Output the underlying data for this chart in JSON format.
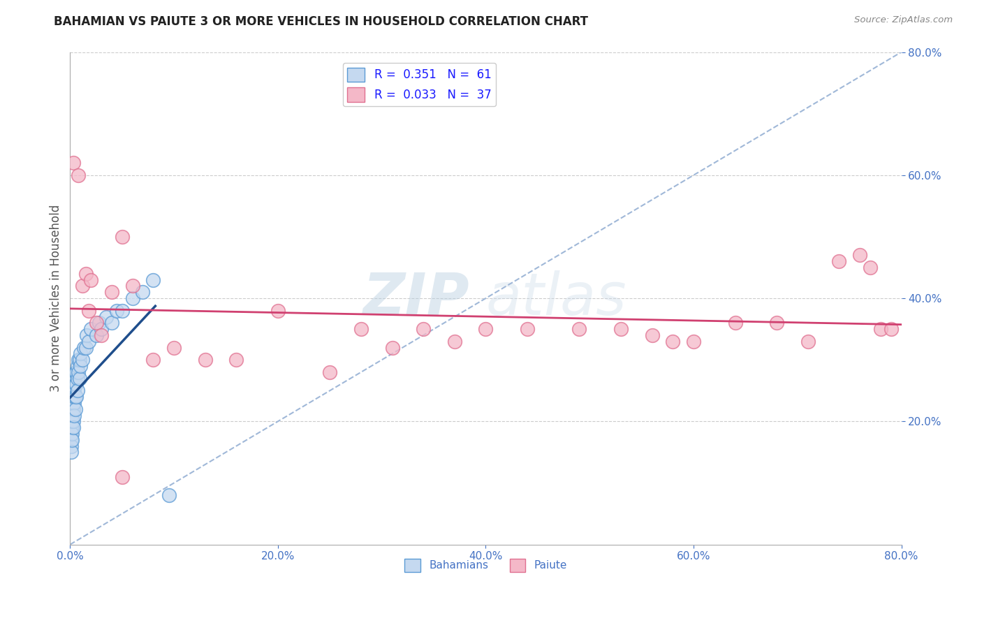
{
  "title": "BAHAMIAN VS PAIUTE 3 OR MORE VEHICLES IN HOUSEHOLD CORRELATION CHART",
  "source_text": "Source: ZipAtlas.com",
  "ylabel": "3 or more Vehicles in Household",
  "xlim": [
    0.0,
    0.8
  ],
  "ylim": [
    0.0,
    0.8
  ],
  "xtick_values": [
    0.0,
    0.2,
    0.4,
    0.6,
    0.8
  ],
  "ytick_values": [
    0.2,
    0.4,
    0.6,
    0.8
  ],
  "watermark_zip": "ZIP",
  "watermark_atlas": "atlas",
  "bahamian_R": 0.351,
  "bahamian_N": 61,
  "paiute_R": 0.033,
  "paiute_N": 37,
  "bahamian_fill_color": "#c5d9f0",
  "bahamian_edge_color": "#5b9bd5",
  "paiute_fill_color": "#f4b8c8",
  "paiute_edge_color": "#e07090",
  "blue_line_color": "#1f4e8c",
  "pink_line_color": "#d04070",
  "diag_line_color": "#a0b8d8",
  "grid_color": "#cccccc",
  "background_color": "#ffffff",
  "tick_label_color": "#4472c4",
  "right_ytick_color": "#4472c4",
  "legend_label_color": "#1a1aff",
  "bahamian_x": [
    0.001,
    0.001,
    0.001,
    0.001,
    0.001,
    0.001,
    0.001,
    0.001,
    0.001,
    0.002,
    0.002,
    0.002,
    0.002,
    0.002,
    0.002,
    0.002,
    0.002,
    0.003,
    0.003,
    0.003,
    0.003,
    0.003,
    0.003,
    0.004,
    0.004,
    0.004,
    0.004,
    0.004,
    0.005,
    0.005,
    0.005,
    0.005,
    0.006,
    0.006,
    0.006,
    0.007,
    0.007,
    0.007,
    0.008,
    0.008,
    0.009,
    0.009,
    0.01,
    0.01,
    0.012,
    0.013,
    0.015,
    0.016,
    0.018,
    0.02,
    0.025,
    0.028,
    0.03,
    0.035,
    0.04,
    0.045,
    0.05,
    0.06,
    0.07,
    0.08,
    0.095
  ],
  "bahamian_y": [
    0.18,
    0.2,
    0.22,
    0.17,
    0.19,
    0.21,
    0.16,
    0.23,
    0.15,
    0.21,
    0.19,
    0.23,
    0.18,
    0.25,
    0.2,
    0.22,
    0.17,
    0.22,
    0.24,
    0.2,
    0.26,
    0.19,
    0.23,
    0.23,
    0.25,
    0.21,
    0.27,
    0.24,
    0.24,
    0.26,
    0.22,
    0.28,
    0.26,
    0.28,
    0.24,
    0.27,
    0.29,
    0.25,
    0.28,
    0.3,
    0.3,
    0.27,
    0.29,
    0.31,
    0.3,
    0.32,
    0.32,
    0.34,
    0.33,
    0.35,
    0.34,
    0.36,
    0.35,
    0.37,
    0.36,
    0.38,
    0.38,
    0.4,
    0.41,
    0.43,
    0.08
  ],
  "paiute_x": [
    0.003,
    0.008,
    0.012,
    0.015,
    0.018,
    0.02,
    0.025,
    0.03,
    0.04,
    0.05,
    0.06,
    0.08,
    0.1,
    0.13,
    0.16,
    0.2,
    0.25,
    0.28,
    0.31,
    0.34,
    0.37,
    0.4,
    0.44,
    0.49,
    0.53,
    0.56,
    0.6,
    0.64,
    0.68,
    0.71,
    0.74,
    0.76,
    0.77,
    0.78,
    0.79,
    0.05,
    0.58
  ],
  "paiute_y": [
    0.62,
    0.6,
    0.42,
    0.44,
    0.38,
    0.43,
    0.36,
    0.34,
    0.41,
    0.5,
    0.42,
    0.3,
    0.32,
    0.3,
    0.3,
    0.38,
    0.28,
    0.35,
    0.32,
    0.35,
    0.33,
    0.35,
    0.35,
    0.35,
    0.35,
    0.34,
    0.33,
    0.36,
    0.36,
    0.33,
    0.46,
    0.47,
    0.45,
    0.35,
    0.35,
    0.11,
    0.33
  ]
}
